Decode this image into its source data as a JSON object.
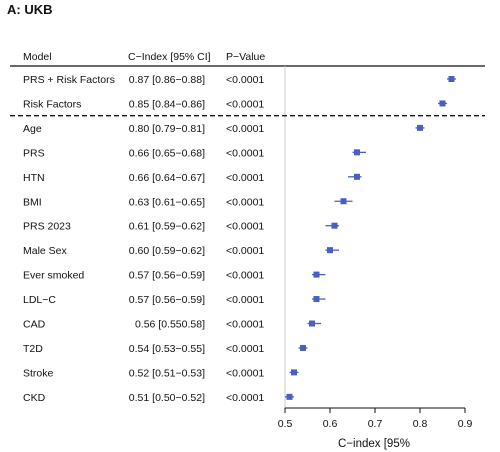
{
  "panel_title": "A: UKB",
  "table_headers": {
    "model": "Model",
    "cindex": "C−Index [95% CI]",
    "pvalue": "P−Value"
  },
  "colors": {
    "marker": "#4a5fc1",
    "whisker": "#4a5fc1",
    "reference_line": "#cccccc",
    "text": "#111111"
  },
  "chart_data": {
    "type": "forest",
    "xlabel": "C−index [95%",
    "xlim": [
      0.5,
      0.9
    ],
    "xticks": [
      "0.5",
      "0.6",
      "0.7",
      "0.8",
      "0.9"
    ],
    "reference_x": 0.5,
    "divider_after_row": 1,
    "rows": [
      {
        "model": "PRS + Risk Factors",
        "ci_text": "0.87 [0.86−0.88]",
        "p": "<0.0001",
        "est": 0.87,
        "lo": 0.86,
        "hi": 0.88
      },
      {
        "model": "Risk Factors",
        "ci_text": "0.85 [0.84−0.86]",
        "p": "<0.0001",
        "est": 0.85,
        "lo": 0.84,
        "hi": 0.86
      },
      {
        "model": "Age",
        "ci_text": "0.80 [0.79−0.81]",
        "p": "<0.0001",
        "est": 0.8,
        "lo": 0.79,
        "hi": 0.81
      },
      {
        "model": "PRS",
        "ci_text": "0.66 [0.65−0.68]",
        "p": "<0.0001",
        "est": 0.66,
        "lo": 0.65,
        "hi": 0.68
      },
      {
        "model": "HTN",
        "ci_text": "0.66 [0.64−0.67]",
        "p": "<0.0001",
        "est": 0.66,
        "lo": 0.64,
        "hi": 0.67
      },
      {
        "model": "BMI",
        "ci_text": "0.63 [0.61−0.65]",
        "p": "<0.0001",
        "est": 0.63,
        "lo": 0.61,
        "hi": 0.65
      },
      {
        "model": "PRS 2023",
        "ci_text": "0.61 [0.59−0.62]",
        "p": "<0.0001",
        "est": 0.61,
        "lo": 0.59,
        "hi": 0.62
      },
      {
        "model": "Male Sex",
        "ci_text": "0.60 [0.59−0.62]",
        "p": "<0.0001",
        "est": 0.6,
        "lo": 0.59,
        "hi": 0.62
      },
      {
        "model": "Ever smoked",
        "ci_text": "0.57 [0.56−0.59]",
        "p": "<0.0001",
        "est": 0.57,
        "lo": 0.56,
        "hi": 0.59
      },
      {
        "model": "LDL−C",
        "ci_text": "0.57 [0.56−0.59]",
        "p": "<0.0001",
        "est": 0.57,
        "lo": 0.56,
        "hi": 0.59
      },
      {
        "model": "CAD",
        "ci_text": "0.56 [0.550.58]",
        "p": "<0.0001",
        "est": 0.56,
        "lo": 0.55,
        "hi": 0.58
      },
      {
        "model": "T2D",
        "ci_text": "0.54 [0.53−0.55]",
        "p": "<0.0001",
        "est": 0.54,
        "lo": 0.53,
        "hi": 0.55
      },
      {
        "model": "Stroke",
        "ci_text": "0.52 [0.51−0.53]",
        "p": "<0.0001",
        "est": 0.52,
        "lo": 0.51,
        "hi": 0.53
      },
      {
        "model": "CKD",
        "ci_text": "0.51 [0.50−0.52]",
        "p": "<0.0001",
        "est": 0.51,
        "lo": 0.5,
        "hi": 0.52
      }
    ]
  }
}
